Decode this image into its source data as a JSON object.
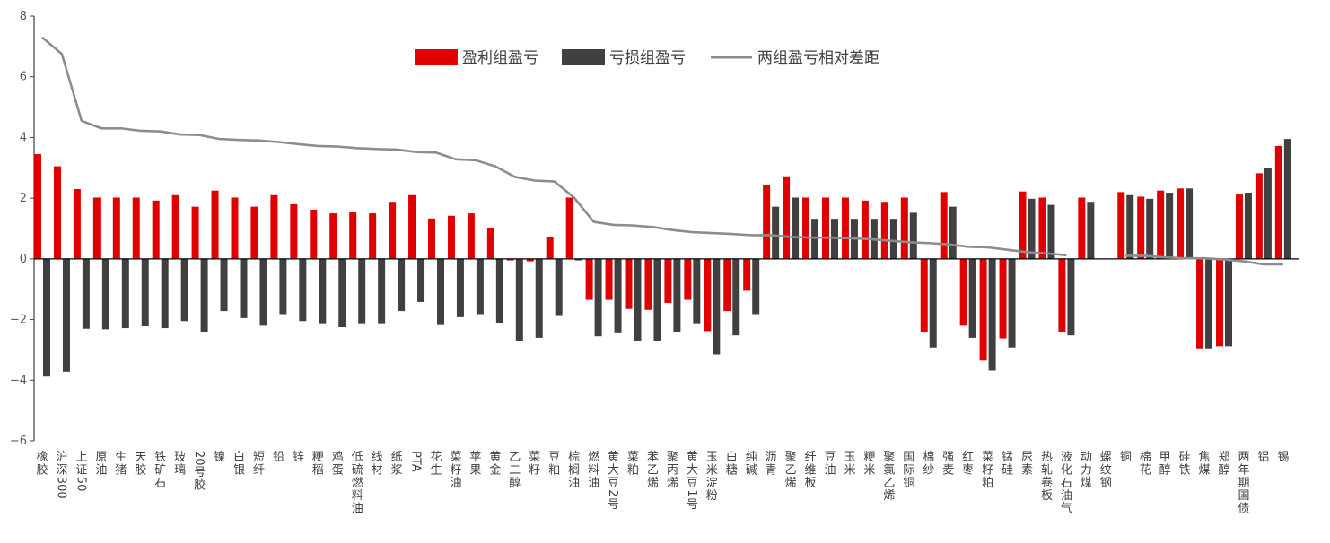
{
  "chart_data": {
    "type": "bar",
    "title": "",
    "xlabel": "",
    "ylabel": "",
    "ylim": [
      -6,
      8
    ],
    "yticks": [
      -6,
      -4,
      -2,
      0,
      2,
      4,
      6,
      8
    ],
    "grid": false,
    "legend_position": "top-center",
    "categories": [
      "橡胶",
      "沪深300",
      "上证50",
      "原油",
      "生猪",
      "天胶",
      "铁矿石",
      "玻璃",
      "20号胶",
      "镍",
      "白银",
      "短纤",
      "铅",
      "锌",
      "粳稻",
      "鸡蛋",
      "低硫燃料油",
      "线材",
      "纸浆",
      "PTA",
      "花生",
      "菜籽油",
      "苹果",
      "黄金",
      "乙二醇",
      "菜籽",
      "豆粕",
      "棕榈油",
      "燃料油",
      "黄大豆2号",
      "菜粕",
      "苯乙烯",
      "聚丙烯",
      "黄大豆1号",
      "玉米淀粉",
      "白糖",
      "纯碱",
      "沥青",
      "聚乙烯",
      "纤维板",
      "豆油",
      "玉米",
      "粳米",
      "聚氯乙烯",
      "国际铜",
      "棉纱",
      "强麦",
      "红枣",
      "菜籽粕",
      "锰硅",
      "尿素",
      "热轧卷板",
      "液化石油气",
      "动力煤",
      "螺纹钢",
      "铜",
      "棉花",
      "甲醇",
      "硅铁",
      "焦煤",
      "郑醇",
      "两年期国债",
      "铝",
      "锡"
    ],
    "series": [
      {
        "name": "盈利组盈亏",
        "type": "bar",
        "color": "#e00000",
        "values": [
          3.45,
          3.05,
          2.3,
          2.02,
          2.02,
          2.02,
          1.92,
          2.1,
          1.72,
          2.25,
          2.02,
          1.72,
          2.1,
          1.8,
          1.62,
          1.5,
          1.53,
          1.5,
          1.88,
          2.1,
          1.33,
          1.42,
          1.5,
          1.02,
          -0.05,
          -0.08,
          0.72,
          2.02,
          -1.35,
          -1.35,
          -1.65,
          -1.68,
          -1.45,
          -1.35,
          -2.38,
          -1.72,
          -1.05,
          2.45,
          2.72,
          2.02,
          2.02,
          2.02,
          1.92,
          1.88,
          2.02,
          -2.42,
          2.2,
          -2.2,
          -3.35,
          -2.62,
          2.22,
          2.02,
          -2.4,
          2.02,
          0,
          2.2,
          2.05,
          2.25,
          2.32,
          -2.95,
          -2.88,
          2.12,
          2.82,
          3.72
        ]
      },
      {
        "name": "亏损组盈亏",
        "type": "bar",
        "color": "#404040",
        "values": [
          -3.88,
          -3.72,
          -2.3,
          -2.32,
          -2.28,
          -2.22,
          -2.28,
          -2.05,
          -2.42,
          -1.72,
          -1.95,
          -2.2,
          -1.82,
          -2.05,
          -2.15,
          -2.25,
          -2.15,
          -2.15,
          -1.72,
          -1.42,
          -2.18,
          -1.92,
          -1.82,
          -2.12,
          -2.72,
          -2.6,
          -1.88,
          -0.05,
          -2.55,
          -2.45,
          -2.72,
          -2.72,
          -2.42,
          -2.15,
          -3.15,
          -2.52,
          -1.82,
          1.72,
          2.02,
          1.32,
          1.32,
          1.32,
          1.32,
          1.32,
          1.52,
          -2.92,
          1.72,
          -2.6,
          -3.68,
          -2.92,
          1.98,
          1.78,
          -2.52,
          1.88,
          0,
          2.1,
          1.98,
          2.18,
          2.32,
          -2.95,
          -2.88,
          2.18,
          2.98,
          3.95
        ]
      },
      {
        "name": "两组盈亏相对差距",
        "type": "line",
        "color": "#8c8c8c",
        "values": [
          7.3,
          6.75,
          4.55,
          4.3,
          4.3,
          4.22,
          4.2,
          4.1,
          4.08,
          3.95,
          3.92,
          3.9,
          3.85,
          3.78,
          3.72,
          3.7,
          3.65,
          3.62,
          3.6,
          3.52,
          3.5,
          3.28,
          3.25,
          3.05,
          2.7,
          2.58,
          2.55,
          2.02,
          1.22,
          1.12,
          1.1,
          1.05,
          0.95,
          0.88,
          0.85,
          0.82,
          0.78,
          0.78,
          0.72,
          0.7,
          0.7,
          0.68,
          0.65,
          0.6,
          0.55,
          0.52,
          0.48,
          0.4,
          0.38,
          0.3,
          0.22,
          0.18,
          0.12,
          null,
          null,
          0.1,
          0.1,
          0.05,
          0.02,
          0.02,
          -0.02,
          -0.08,
          -0.18,
          -0.18
        ]
      }
    ]
  }
}
